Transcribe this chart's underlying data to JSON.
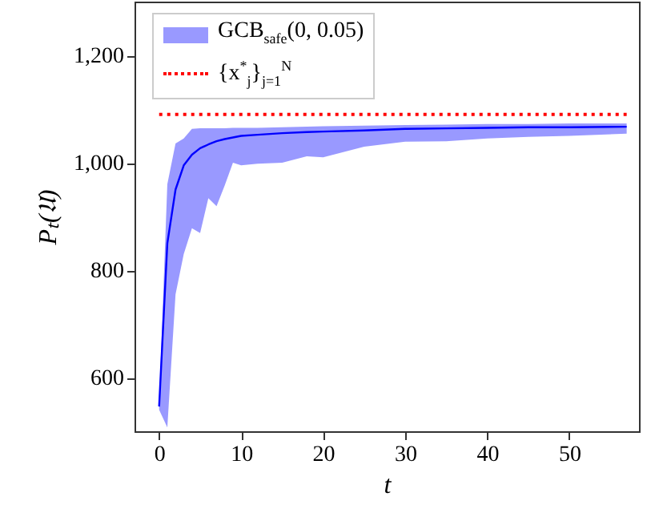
{
  "chart_data": {
    "type": "line",
    "xlabel": "t",
    "ylabel": "Pₜ(𝔘)",
    "xlim": [
      -3,
      58.5
    ],
    "ylim": [
      500,
      1300
    ],
    "xticks": [
      0,
      10,
      20,
      30,
      40,
      50
    ],
    "yticks": [
      600,
      800,
      {
        "value": 1000,
        "label": "1,000"
      },
      {
        "value": 1200,
        "label": "1,200"
      }
    ],
    "grid": false,
    "legend": "top left",
    "series": [
      {
        "name": "GCB$_{safe}$(0, 0.05)",
        "color": "#0000ff",
        "x": [
          0,
          1,
          2,
          3,
          4,
          5,
          6,
          7,
          8,
          9,
          10,
          12,
          15,
          18,
          20,
          25,
          30,
          35,
          40,
          45,
          50,
          57
        ],
        "values": [
          546,
          850,
          950,
          995,
          1015,
          1027,
          1034,
          1040,
          1044,
          1047,
          1050,
          1052,
          1055,
          1057,
          1058,
          1060,
          1063,
          1064,
          1065,
          1066,
          1066,
          1067
        ],
        "lower": [
          540,
          507,
          755,
          830,
          878,
          869,
          934,
          919,
          958,
          1000,
          995,
          998,
          1000,
          1012,
          1010,
          1030,
          1039,
          1040,
          1045,
          1048,
          1050,
          1054
        ],
        "upper": [
          552,
          960,
          1036,
          1045,
          1063,
          1064,
          1064,
          1064,
          1064,
          1065,
          1065,
          1065,
          1066,
          1067,
          1068,
          1069,
          1070,
          1071,
          1072,
          1072,
          1073,
          1073
        ]
      },
      {
        "name": "{x$^{*}$$_{j}$}$_{j=1}$$^{N}$",
        "color": "#ff0000",
        "line_style": "dotted",
        "x": [
          0,
          57
        ],
        "values": [
          1090,
          1090
        ]
      }
    ]
  }
}
